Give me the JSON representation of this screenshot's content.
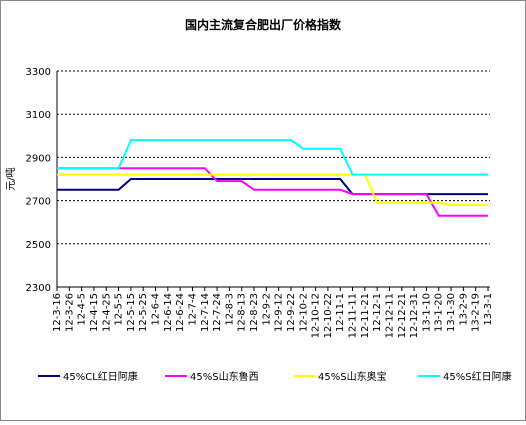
{
  "chart_data": {
    "type": "line",
    "title": "国内主流复合肥出厂价格指数",
    "y_label": "元/吨",
    "categories": [
      "12-3-16",
      "12-3-26",
      "12-4-5",
      "12-4-15",
      "12-4-25",
      "12-5-5",
      "12-5-15",
      "12-5-25",
      "12-6-4",
      "12-6-14",
      "12-6-24",
      "12-7-4",
      "12-7-14",
      "12-7-24",
      "12-8-3",
      "12-8-13",
      "12-8-23",
      "12-9-2",
      "12-9-12",
      "12-9-22",
      "12-10-2",
      "12-10-12",
      "12-10-22",
      "12-11-1",
      "12-11-11",
      "12-11-21",
      "12-12-1",
      "12-12-11",
      "12-12-21",
      "12-12-31",
      "13-1-10",
      "13-1-20",
      "13-1-30",
      "13-2-9",
      "13-2-19",
      "13-3-1"
    ],
    "series": [
      {
        "name": "45%CL红日阿康",
        "color": "#000080",
        "values": [
          2750,
          2750,
          2750,
          2750,
          2750,
          2750,
          2800,
          2800,
          2800,
          2800,
          2800,
          2800,
          2800,
          2800,
          2800,
          2800,
          2800,
          2800,
          2800,
          2800,
          2800,
          2800,
          2800,
          2800,
          2730,
          2730,
          2730,
          2730,
          2730,
          2730,
          2730,
          2730,
          2730,
          2730,
          2730,
          2730
        ]
      },
      {
        "name": "45%S山东鲁西",
        "color": "#ff00ff",
        "values": [
          2850,
          2850,
          2850,
          2850,
          2850,
          2850,
          2850,
          2850,
          2850,
          2850,
          2850,
          2850,
          2850,
          2790,
          2790,
          2790,
          2750,
          2750,
          2750,
          2750,
          2750,
          2750,
          2750,
          2750,
          2730,
          2730,
          2730,
          2730,
          2730,
          2730,
          2730,
          2630,
          2630,
          2630,
          2630,
          2630
        ]
      },
      {
        "name": "45%S山东奥宝",
        "color": "#ffff00",
        "values": [
          2820,
          2820,
          2820,
          2820,
          2820,
          2820,
          2820,
          2820,
          2820,
          2820,
          2820,
          2820,
          2820,
          2820,
          2820,
          2820,
          2820,
          2820,
          2820,
          2820,
          2820,
          2820,
          2820,
          2820,
          2820,
          2820,
          2690,
          2690,
          2690,
          2690,
          2690,
          2690,
          2680,
          2680,
          2680,
          2680
        ]
      },
      {
        "name": "45%S红日阿康",
        "color": "#00ffff",
        "values": [
          2850,
          2850,
          2850,
          2850,
          2850,
          2850,
          2980,
          2980,
          2980,
          2980,
          2980,
          2980,
          2980,
          2980,
          2980,
          2980,
          2980,
          2980,
          2980,
          2980,
          2940,
          2940,
          2940,
          2940,
          2820,
          2820,
          2820,
          2820,
          2820,
          2820,
          2820,
          2820,
          2820,
          2820,
          2820,
          2820
        ]
      }
    ],
    "ylim": [
      2300,
      3300
    ],
    "yticks": [
      2300,
      2500,
      2700,
      2900,
      3100,
      3300
    ],
    "grid": true
  }
}
